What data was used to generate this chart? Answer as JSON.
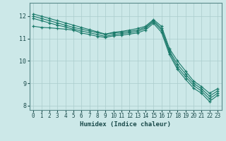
{
  "xlabel": "Humidex (Indice chaleur)",
  "background_color": "#cce8e8",
  "grid_color": "#aacccc",
  "line_color": "#1a7a6a",
  "xlim": [
    -0.5,
    23.5
  ],
  "ylim": [
    7.8,
    12.6
  ],
  "yticks": [
    8,
    9,
    10,
    11,
    12
  ],
  "xticks": [
    0,
    1,
    2,
    3,
    4,
    5,
    6,
    7,
    8,
    9,
    10,
    11,
    12,
    13,
    14,
    15,
    16,
    17,
    18,
    19,
    20,
    21,
    22,
    23
  ],
  "series": [
    {
      "x": [
        0,
        1,
        2,
        3,
        4,
        5,
        6,
        7,
        8,
        9,
        10,
        11,
        12,
        13,
        14,
        15,
        16,
        17,
        18,
        19,
        20,
        21,
        22,
        23
      ],
      "y": [
        12.1,
        12.0,
        11.9,
        11.8,
        11.7,
        11.6,
        11.5,
        11.4,
        11.3,
        11.2,
        11.28,
        11.32,
        11.38,
        11.45,
        11.55,
        11.85,
        11.55,
        10.55,
        10.0,
        9.55,
        9.1,
        8.85,
        8.55,
        8.75
      ]
    },
    {
      "x": [
        0,
        1,
        2,
        3,
        4,
        5,
        6,
        7,
        8,
        9,
        10,
        11,
        12,
        13,
        14,
        15,
        16,
        17,
        18,
        19,
        20,
        21,
        22,
        23
      ],
      "y": [
        12.0,
        11.9,
        11.8,
        11.7,
        11.6,
        11.5,
        11.42,
        11.34,
        11.26,
        11.18,
        11.25,
        11.28,
        11.32,
        11.38,
        11.5,
        11.8,
        11.45,
        10.45,
        9.85,
        9.42,
        9.0,
        8.75,
        8.42,
        8.65
      ]
    },
    {
      "x": [
        0,
        1,
        2,
        3,
        4,
        5,
        6,
        7,
        8,
        9,
        10,
        11,
        12,
        13,
        14,
        15,
        16,
        17,
        18,
        19,
        20,
        21,
        22,
        23
      ],
      "y": [
        11.9,
        11.8,
        11.7,
        11.6,
        11.52,
        11.42,
        11.34,
        11.26,
        11.18,
        11.1,
        11.18,
        11.22,
        11.26,
        11.32,
        11.45,
        11.75,
        11.38,
        10.38,
        9.72,
        9.3,
        8.9,
        8.65,
        8.3,
        8.55
      ]
    },
    {
      "x": [
        0,
        1,
        2,
        3,
        4,
        5,
        6,
        7,
        8,
        9,
        10,
        11,
        12,
        13,
        14,
        15,
        16,
        17,
        18,
        19,
        20,
        21,
        22,
        23
      ],
      "y": [
        11.55,
        11.5,
        11.48,
        11.45,
        11.42,
        11.38,
        11.25,
        11.18,
        11.1,
        11.05,
        11.12,
        11.15,
        11.2,
        11.25,
        11.38,
        11.68,
        11.28,
        10.28,
        9.62,
        9.18,
        8.78,
        8.55,
        8.18,
        8.45
      ]
    }
  ]
}
